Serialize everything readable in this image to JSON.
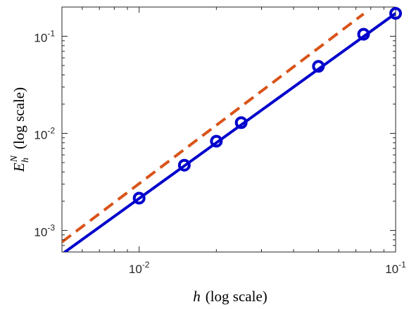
{
  "chart_data": {
    "type": "line",
    "xscale": "log",
    "yscale": "log",
    "xlim": [
      0.005,
      0.1
    ],
    "ylim": [
      0.0006,
      0.2
    ],
    "grid": false,
    "legend": "none",
    "xlabel": {
      "symbol": "h",
      "suffix": "(log scale)"
    },
    "ylabel": {
      "symbol": "E",
      "sub": "h",
      "sup": "N",
      "suffix": "(log scale)"
    },
    "xticks": [
      {
        "value": 0.01,
        "base": "10",
        "exp": "-2"
      },
      {
        "value": 0.1,
        "base": "10",
        "exp": "-1"
      }
    ],
    "yticks": [
      {
        "value": 0.001,
        "base": "10",
        "exp": "-3"
      },
      {
        "value": 0.01,
        "base": "10",
        "exp": "-2"
      },
      {
        "value": 0.1,
        "base": "10",
        "exp": "-1"
      }
    ],
    "series": [
      {
        "style": "solid",
        "marker": "circle",
        "color": "#0000cc",
        "x": [
          0.01,
          0.015,
          0.02,
          0.025,
          0.05,
          0.075,
          0.1
        ],
        "y": [
          0.00215,
          0.0047,
          0.0083,
          0.0129,
          0.049,
          0.105,
          0.172
        ],
        "fit_line": {
          "x": [
            0.005,
            0.1
          ],
          "y": [
            0.00057,
            0.172
          ]
        }
      },
      {
        "style": "dashed",
        "marker": "none",
        "color": "#d95319",
        "x": [
          0.005,
          0.075
        ],
        "y": [
          0.00076,
          0.17
        ]
      }
    ]
  }
}
